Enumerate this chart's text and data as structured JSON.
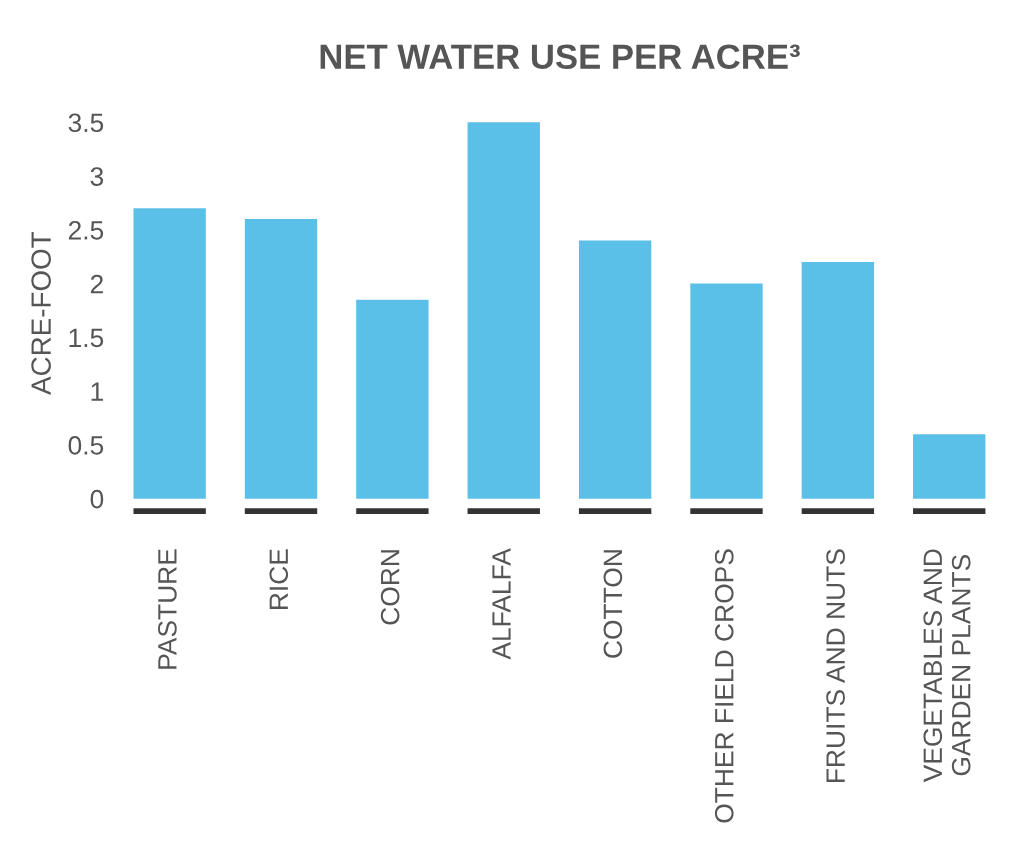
{
  "chart_data": {
    "type": "bar",
    "title": "NET WATER USE PER ACRE³",
    "ylabel": "ACRE-FOOT",
    "categories": [
      "PASTURE",
      "RICE",
      "CORN",
      "ALFALFA",
      "COTTON",
      "OTHER FIELD CROPS",
      "FRUITS AND NUTS",
      "VEGETABLES AND\nGARDEN PLANTS"
    ],
    "values": [
      2.7,
      2.6,
      1.85,
      3.5,
      2.4,
      2.0,
      2.2,
      0.6
    ],
    "color": "#5bc0e7",
    "ylim": [
      -0.15,
      3.6
    ],
    "yticks": [
      0,
      0.5,
      1,
      1.5,
      2,
      2.5,
      3,
      3.5
    ],
    "grid": false,
    "legend": false
  }
}
